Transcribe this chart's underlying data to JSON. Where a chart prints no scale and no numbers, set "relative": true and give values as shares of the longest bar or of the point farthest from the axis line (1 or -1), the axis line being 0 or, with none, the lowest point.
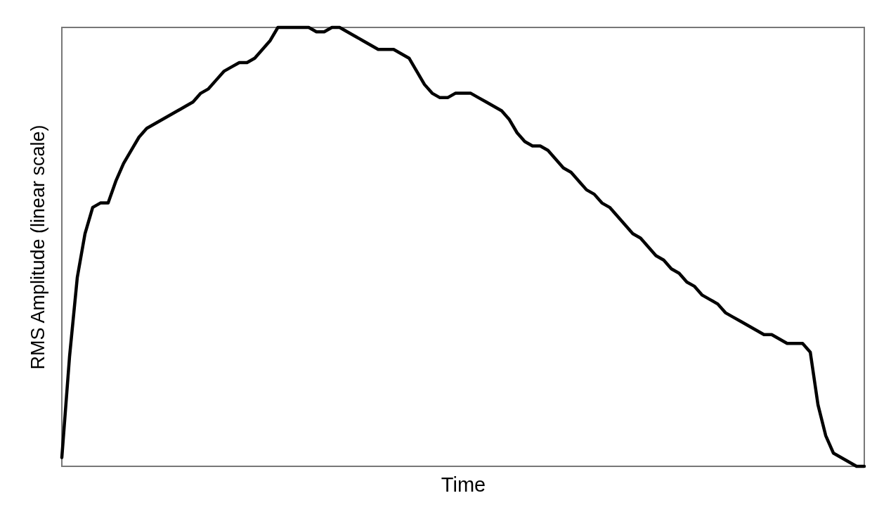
{
  "chart_data": {
    "type": "line",
    "relative": true,
    "xlabel": "Time",
    "ylabel": "RMS Amplitude (linear scale)",
    "grid": false,
    "tick_labels": false,
    "categories": [
      null,
      null,
      null,
      null,
      null,
      null,
      null,
      null,
      null,
      null,
      null,
      null,
      null,
      null,
      null,
      null,
      null,
      null,
      null,
      null,
      null,
      null,
      null,
      null,
      null,
      null,
      null,
      null,
      null,
      null,
      null,
      null,
      null,
      null,
      null,
      null,
      null,
      null,
      null,
      null,
      null,
      null,
      null,
      null,
      null,
      null,
      null,
      null,
      null,
      null,
      null,
      null,
      null,
      null,
      null,
      null,
      null,
      null,
      null,
      null,
      null,
      null,
      null,
      null,
      null,
      null,
      null,
      null,
      null,
      null,
      null,
      null,
      null,
      null,
      null,
      null,
      null,
      null,
      null,
      null,
      null,
      null,
      null,
      null,
      null,
      null,
      null,
      null,
      null,
      null,
      null,
      null,
      null,
      null,
      null,
      null,
      null,
      null,
      null,
      null,
      null,
      null,
      null,
      null,
      null
    ],
    "series": [
      {
        "color": "#000000",
        "values": [
          0.02,
          0.25,
          0.43,
          0.53,
          0.59,
          0.6,
          0.6,
          0.65,
          0.69,
          0.72,
          0.75,
          0.77,
          0.78,
          0.79,
          0.8,
          0.81,
          0.82,
          0.83,
          0.85,
          0.86,
          0.88,
          0.9,
          0.91,
          0.92,
          0.92,
          0.93,
          0.95,
          0.97,
          1.0,
          1.0,
          1.0,
          1.0,
          1.0,
          0.99,
          0.99,
          1.0,
          1.0,
          0.99,
          0.98,
          0.97,
          0.96,
          0.95,
          0.95,
          0.95,
          0.94,
          0.93,
          0.9,
          0.87,
          0.85,
          0.84,
          0.84,
          0.85,
          0.85,
          0.85,
          0.84,
          0.83,
          0.82,
          0.81,
          0.79,
          0.76,
          0.74,
          0.73,
          0.73,
          0.72,
          0.7,
          0.68,
          0.67,
          0.65,
          0.63,
          0.62,
          0.6,
          0.59,
          0.57,
          0.55,
          0.53,
          0.52,
          0.5,
          0.48,
          0.47,
          0.45,
          0.44,
          0.42,
          0.41,
          0.39,
          0.38,
          0.37,
          0.35,
          0.34,
          0.33,
          0.32,
          0.31,
          0.3,
          0.3,
          0.29,
          0.28,
          0.28,
          0.28,
          0.26,
          0.14,
          0.07,
          0.03,
          0.02,
          0.01,
          0.0,
          0.0
        ]
      }
    ]
  }
}
